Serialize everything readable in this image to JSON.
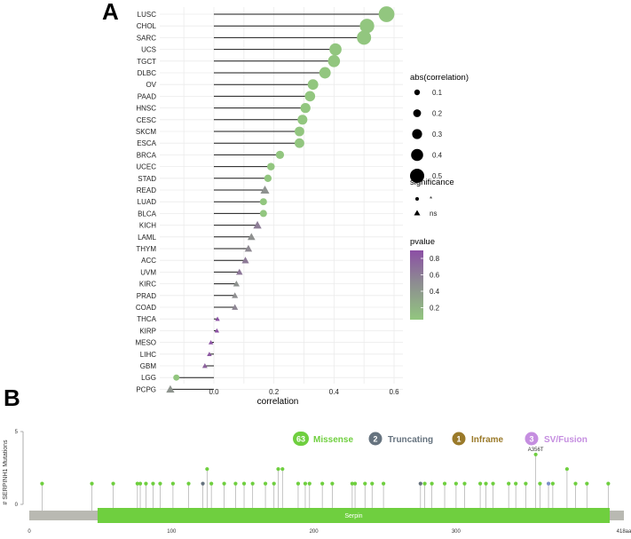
{
  "panels": {
    "a_label": "A",
    "b_label": "B"
  },
  "chart_data": [
    {
      "type": "lollipop",
      "panel": "A",
      "xlabel": "correlation",
      "xlim": [
        -0.2,
        0.61
      ],
      "xticks": [
        "0.0",
        "0.2",
        "0.4",
        "0.6"
      ],
      "xtick_values": [
        0.0,
        0.2,
        0.4,
        0.6
      ],
      "baseline": 0.0,
      "rows": [
        {
          "cancer": "LUSC",
          "correlation": 0.575,
          "sig": "*",
          "pvalue": 0.0
        },
        {
          "cancer": "CHOL",
          "correlation": 0.51,
          "sig": "*",
          "pvalue": 0.0
        },
        {
          "cancer": "SARC",
          "correlation": 0.5,
          "sig": "*",
          "pvalue": 0.0
        },
        {
          "cancer": "UCS",
          "correlation": 0.405,
          "sig": "*",
          "pvalue": 0.0
        },
        {
          "cancer": "TGCT",
          "correlation": 0.4,
          "sig": "*",
          "pvalue": 0.0
        },
        {
          "cancer": "DLBC",
          "correlation": 0.37,
          "sig": "*",
          "pvalue": 0.0
        },
        {
          "cancer": "OV",
          "correlation": 0.33,
          "sig": "*",
          "pvalue": 0.0
        },
        {
          "cancer": "PAAD",
          "correlation": 0.32,
          "sig": "*",
          "pvalue": 0.0
        },
        {
          "cancer": "HNSC",
          "correlation": 0.305,
          "sig": "*",
          "pvalue": 0.0
        },
        {
          "cancer": "CESC",
          "correlation": 0.295,
          "sig": "*",
          "pvalue": 0.0
        },
        {
          "cancer": "SKCM",
          "correlation": 0.285,
          "sig": "*",
          "pvalue": 0.0
        },
        {
          "cancer": "ESCA",
          "correlation": 0.285,
          "sig": "*",
          "pvalue": 0.0
        },
        {
          "cancer": "BRCA",
          "correlation": 0.22,
          "sig": "*",
          "pvalue": 0.0
        },
        {
          "cancer": "UCEC",
          "correlation": 0.19,
          "sig": "*",
          "pvalue": 0.0
        },
        {
          "cancer": "STAD",
          "correlation": 0.18,
          "sig": "*",
          "pvalue": 0.0
        },
        {
          "cancer": "READ",
          "correlation": 0.17,
          "sig": "ns",
          "pvalue": 0.1
        },
        {
          "cancer": "LUAD",
          "correlation": 0.165,
          "sig": "*",
          "pvalue": 0.0
        },
        {
          "cancer": "BLCA",
          "correlation": 0.165,
          "sig": "*",
          "pvalue": 0.0
        },
        {
          "cancer": "KICH",
          "correlation": 0.145,
          "sig": "ns",
          "pvalue": 0.35
        },
        {
          "cancer": "LAML",
          "correlation": 0.125,
          "sig": "ns",
          "pvalue": 0.12
        },
        {
          "cancer": "THYM",
          "correlation": 0.115,
          "sig": "ns",
          "pvalue": 0.2
        },
        {
          "cancer": "ACC",
          "correlation": 0.105,
          "sig": "ns",
          "pvalue": 0.38
        },
        {
          "cancer": "UVM",
          "correlation": 0.085,
          "sig": "ns",
          "pvalue": 0.42
        },
        {
          "cancer": "KIRC",
          "correlation": 0.075,
          "sig": "ns",
          "pvalue": 0.1
        },
        {
          "cancer": "PRAD",
          "correlation": 0.07,
          "sig": "ns",
          "pvalue": 0.15
        },
        {
          "cancer": "COAD",
          "correlation": 0.07,
          "sig": "ns",
          "pvalue": 0.25
        },
        {
          "cancer": "THCA",
          "correlation": 0.012,
          "sig": "ns",
          "pvalue": 0.85
        },
        {
          "cancer": "KIRP",
          "correlation": 0.01,
          "sig": "ns",
          "pvalue": 0.88
        },
        {
          "cancer": "MESO",
          "correlation": -0.01,
          "sig": "ns",
          "pvalue": 0.85
        },
        {
          "cancer": "LIHC",
          "correlation": -0.015,
          "sig": "ns",
          "pvalue": 0.8
        },
        {
          "cancer": "GBM",
          "correlation": -0.03,
          "sig": "ns",
          "pvalue": 0.65
        },
        {
          "cancer": "LGG",
          "correlation": -0.125,
          "sig": "*",
          "pvalue": 0.0
        },
        {
          "cancer": "PCPG",
          "correlation": -0.145,
          "sig": "ns",
          "pvalue": 0.07
        }
      ],
      "legend": {
        "size_title": "abs(correlation)",
        "size_values": [
          "0.1",
          "0.2",
          "0.3",
          "0.4",
          "0.5"
        ],
        "shape_title": "significance",
        "shape_values": [
          "*",
          "ns"
        ],
        "color_title": "pvalue",
        "color_ticks": [
          "0.8",
          "0.6",
          "0.4",
          "0.2"
        ],
        "color_low": "#92c67f",
        "color_high": "#8c4fa5"
      }
    },
    {
      "type": "lollipop-mutation",
      "panel": "B",
      "ylabel": "# SERPINH1 Mutations",
      "yticks": [
        "5",
        "0"
      ],
      "ylim": [
        0,
        5
      ],
      "xlim": [
        0,
        418
      ],
      "xticks": [
        "0",
        "100",
        "200",
        "300"
      ],
      "xtick_values": [
        0,
        100,
        200,
        300
      ],
      "x_end_label": "418aa",
      "domain": {
        "name": "Serpin",
        "start": 48,
        "end": 408,
        "color": "#6fcf3f"
      },
      "annotation": "A356T",
      "legend": [
        {
          "count": "63",
          "label": "Missense",
          "color": "#6fcf3f"
        },
        {
          "count": "2",
          "label": "Truncating",
          "color": "#66737f"
        },
        {
          "count": "1",
          "label": "Inframe",
          "color": "#9a7a2a"
        },
        {
          "count": "3",
          "label": "SV/Fusion",
          "color": "#c58ee0"
        }
      ],
      "mutations": [
        {
          "pos": 9,
          "count": 1,
          "type": "missense"
        },
        {
          "pos": 44,
          "count": 1,
          "type": "missense"
        },
        {
          "pos": 59,
          "count": 1,
          "type": "missense"
        },
        {
          "pos": 76,
          "count": 1,
          "type": "missense"
        },
        {
          "pos": 78,
          "count": 1,
          "type": "missense"
        },
        {
          "pos": 82,
          "count": 1,
          "type": "missense"
        },
        {
          "pos": 87,
          "count": 1,
          "type": "missense"
        },
        {
          "pos": 92,
          "count": 1,
          "type": "missense"
        },
        {
          "pos": 101,
          "count": 1,
          "type": "missense"
        },
        {
          "pos": 112,
          "count": 1,
          "type": "missense"
        },
        {
          "pos": 122,
          "count": 1,
          "type": "truncating"
        },
        {
          "pos": 125,
          "count": 2,
          "type": "missense"
        },
        {
          "pos": 128,
          "count": 1,
          "type": "missense"
        },
        {
          "pos": 137,
          "count": 1,
          "type": "missense"
        },
        {
          "pos": 145,
          "count": 1,
          "type": "missense"
        },
        {
          "pos": 151,
          "count": 1,
          "type": "missense"
        },
        {
          "pos": 157,
          "count": 1,
          "type": "missense"
        },
        {
          "pos": 166,
          "count": 1,
          "type": "missense"
        },
        {
          "pos": 172,
          "count": 1,
          "type": "missense"
        },
        {
          "pos": 175,
          "count": 2,
          "type": "missense"
        },
        {
          "pos": 178,
          "count": 2,
          "type": "missense"
        },
        {
          "pos": 189,
          "count": 1,
          "type": "missense"
        },
        {
          "pos": 194,
          "count": 1,
          "type": "missense"
        },
        {
          "pos": 197,
          "count": 1,
          "type": "missense"
        },
        {
          "pos": 206,
          "count": 1,
          "type": "missense"
        },
        {
          "pos": 213,
          "count": 1,
          "type": "missense"
        },
        {
          "pos": 227,
          "count": 1,
          "type": "missense"
        },
        {
          "pos": 229,
          "count": 1,
          "type": "missense"
        },
        {
          "pos": 236,
          "count": 1,
          "type": "missense"
        },
        {
          "pos": 241,
          "count": 1,
          "type": "missense"
        },
        {
          "pos": 249,
          "count": 1,
          "type": "missense"
        },
        {
          "pos": 275,
          "count": 1,
          "type": "truncating"
        },
        {
          "pos": 278,
          "count": 1,
          "type": "missense"
        },
        {
          "pos": 283,
          "count": 1,
          "type": "missense"
        },
        {
          "pos": 292,
          "count": 1,
          "type": "missense"
        },
        {
          "pos": 300,
          "count": 1,
          "type": "missense"
        },
        {
          "pos": 306,
          "count": 1,
          "type": "missense"
        },
        {
          "pos": 317,
          "count": 1,
          "type": "missense"
        },
        {
          "pos": 321,
          "count": 1,
          "type": "missense"
        },
        {
          "pos": 326,
          "count": 1,
          "type": "missense"
        },
        {
          "pos": 337,
          "count": 1,
          "type": "missense"
        },
        {
          "pos": 342,
          "count": 1,
          "type": "missense"
        },
        {
          "pos": 349,
          "count": 1,
          "type": "missense"
        },
        {
          "pos": 356,
          "count": 3,
          "type": "missense"
        },
        {
          "pos": 359,
          "count": 1,
          "type": "missense"
        },
        {
          "pos": 365,
          "count": 1,
          "type": "sv"
        },
        {
          "pos": 368,
          "count": 1,
          "type": "missense"
        },
        {
          "pos": 378,
          "count": 2,
          "type": "missense"
        },
        {
          "pos": 384,
          "count": 1,
          "type": "missense"
        },
        {
          "pos": 392,
          "count": 1,
          "type": "missense"
        },
        {
          "pos": 407,
          "count": 1,
          "type": "missense"
        }
      ]
    }
  ]
}
